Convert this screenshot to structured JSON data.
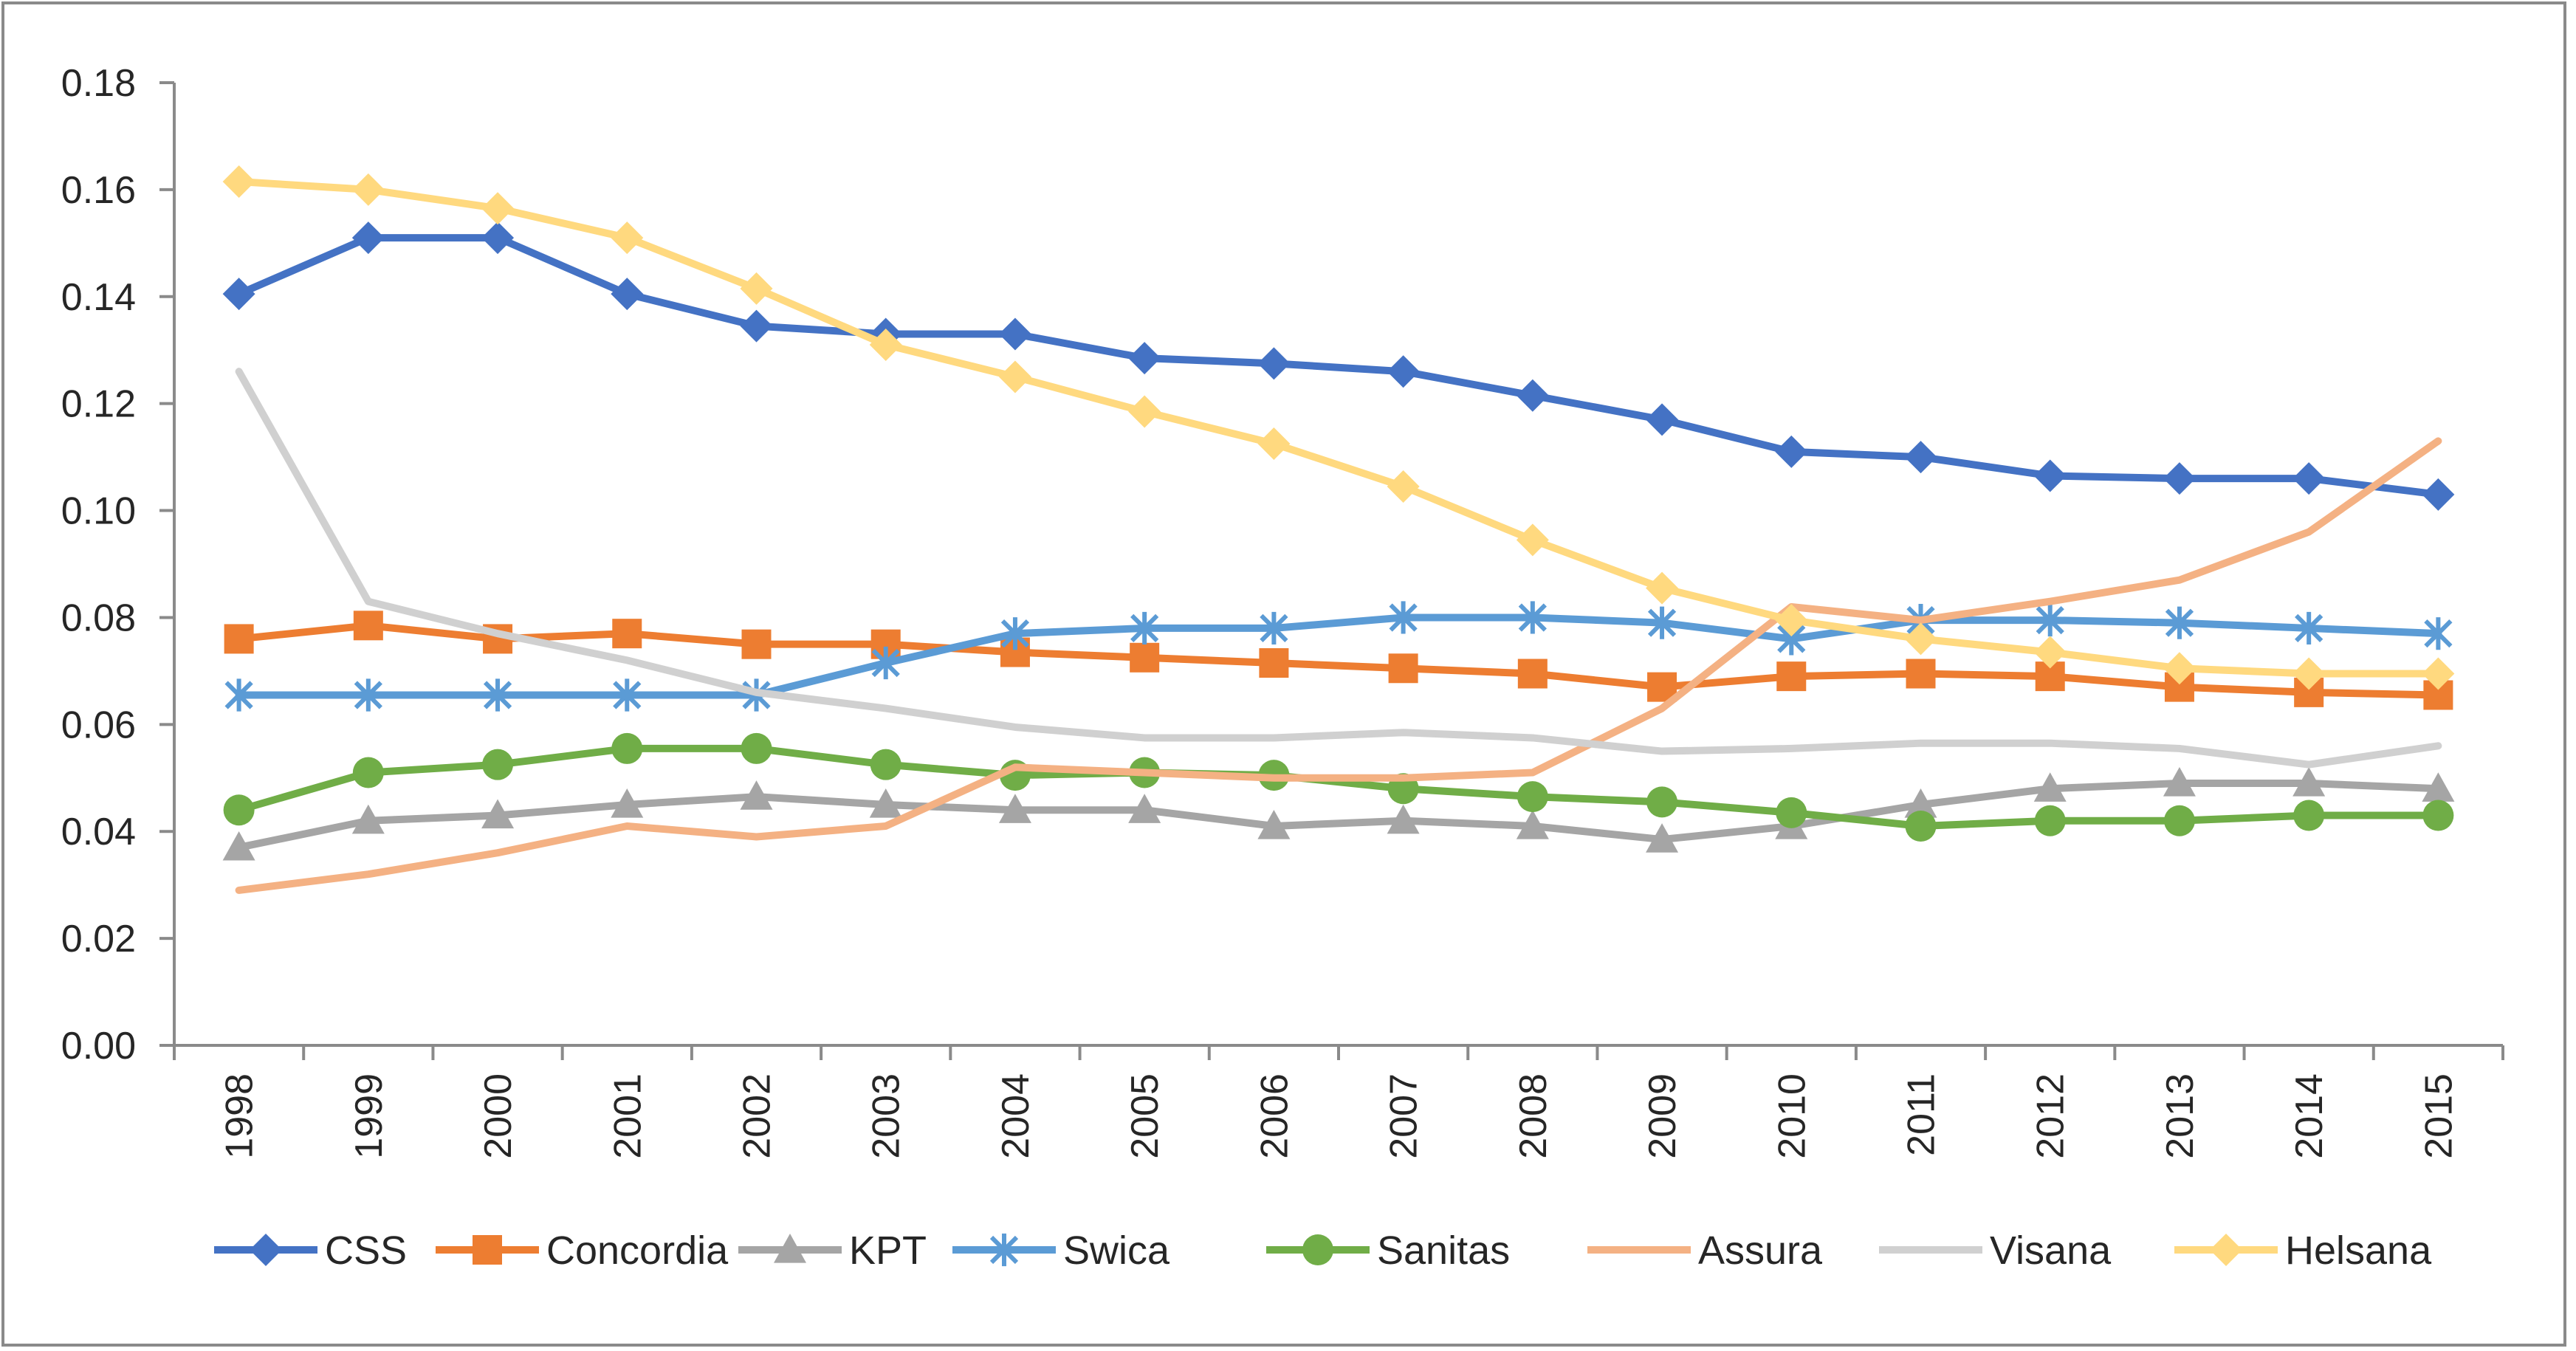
{
  "chart_data": {
    "type": "line",
    "title": "",
    "xlabel": "",
    "ylabel": "",
    "ylim": [
      0,
      0.18
    ],
    "y_ticks": [
      "0.00",
      "0.02",
      "0.04",
      "0.06",
      "0.08",
      "0.10",
      "0.12",
      "0.14",
      "0.16",
      "0.18"
    ],
    "categories": [
      "1998",
      "1999",
      "2000",
      "2001",
      "2002",
      "2003",
      "2004",
      "2005",
      "2006",
      "2007",
      "2008",
      "2009",
      "2010",
      "2011",
      "2012",
      "2013",
      "2014",
      "2015"
    ],
    "grid": false,
    "legend_position": "bottom",
    "series": [
      {
        "name": "CSS",
        "color": "#4472C4",
        "marker": "diamond",
        "values": [
          0.1405,
          0.151,
          0.151,
          0.1405,
          0.1345,
          0.133,
          0.133,
          0.1285,
          0.1275,
          0.126,
          0.1215,
          0.117,
          0.111,
          0.11,
          0.1065,
          0.106,
          0.106,
          0.103
        ]
      },
      {
        "name": "Concordia",
        "color": "#ED7D31",
        "marker": "square",
        "values": [
          0.076,
          0.0785,
          0.076,
          0.077,
          0.075,
          0.075,
          0.0735,
          0.0725,
          0.0715,
          0.0705,
          0.0695,
          0.067,
          0.069,
          0.0695,
          0.069,
          0.067,
          0.066,
          0.0655
        ]
      },
      {
        "name": "KPT",
        "color": "#A5A5A5",
        "marker": "triangle",
        "values": [
          0.037,
          0.042,
          0.043,
          0.045,
          0.0465,
          0.045,
          0.044,
          0.044,
          0.041,
          0.042,
          0.041,
          0.0385,
          0.041,
          0.045,
          0.048,
          0.049,
          0.049,
          0.048
        ]
      },
      {
        "name": "Swica",
        "color": "#5B9BD5",
        "marker": "star",
        "values": [
          0.0655,
          0.0655,
          0.0655,
          0.0655,
          0.0655,
          0.0715,
          0.077,
          0.078,
          0.078,
          0.08,
          0.08,
          0.079,
          0.076,
          0.0795,
          0.0795,
          0.079,
          0.078,
          0.077
        ]
      },
      {
        "name": "Sanitas",
        "color": "#70AD47",
        "marker": "circle",
        "values": [
          0.044,
          0.051,
          0.0525,
          0.0555,
          0.0555,
          0.0525,
          0.0505,
          0.051,
          0.0505,
          0.048,
          0.0465,
          0.0455,
          0.0435,
          0.041,
          0.042,
          0.042,
          0.043,
          0.043
        ]
      },
      {
        "name": "Assura",
        "color": "#F4B183",
        "marker": "none",
        "values": [
          0.029,
          0.032,
          0.036,
          0.041,
          0.039,
          0.041,
          0.052,
          0.051,
          0.05,
          0.05,
          0.051,
          0.063,
          0.082,
          0.0795,
          0.083,
          0.087,
          0.096,
          0.113
        ]
      },
      {
        "name": "Visana",
        "color": "#D0D0D0",
        "marker": "none",
        "values": [
          0.126,
          0.083,
          0.077,
          0.072,
          0.066,
          0.063,
          0.0595,
          0.0575,
          0.0575,
          0.0585,
          0.0575,
          0.055,
          0.0555,
          0.0565,
          0.0565,
          0.0555,
          0.0525,
          0.056
        ]
      },
      {
        "name": "Helsana",
        "color": "#FFD97F",
        "marker": "diamond",
        "values": [
          0.1615,
          0.16,
          0.1565,
          0.151,
          0.1415,
          0.131,
          0.125,
          0.1185,
          0.1125,
          0.1045,
          0.0945,
          0.0855,
          0.0795,
          0.076,
          0.0735,
          0.0705,
          0.0695,
          0.0695
        ]
      }
    ]
  }
}
